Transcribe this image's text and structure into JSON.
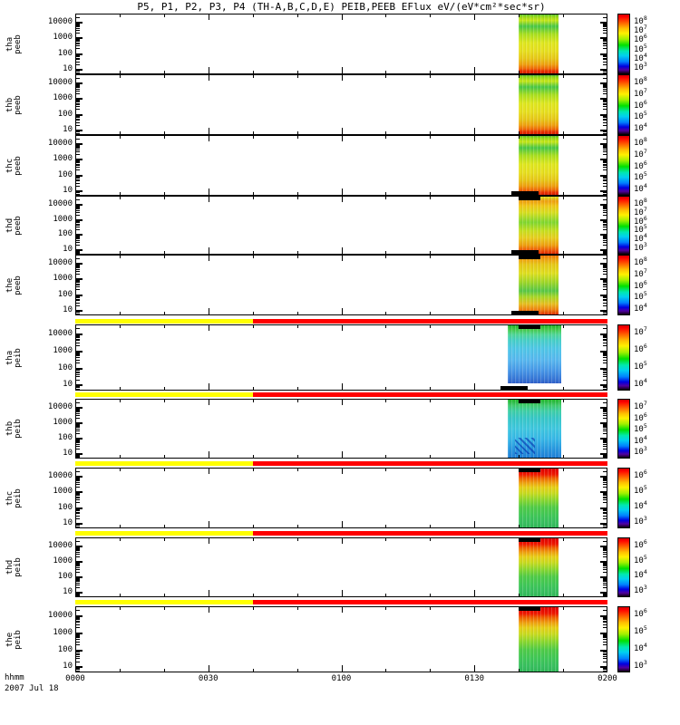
{
  "title": "P5, P1, P2, P3, P4 (TH-A,B,C,D,E) PEIB,PEEB EFlux eV/(eV*cm²*sec*sr)",
  "x_axis": {
    "format_label": "hhmm",
    "date": "2007 Jul 18",
    "ticks": [
      "0000",
      "0030",
      "0100",
      "0130",
      "0200"
    ]
  },
  "y_axis": {
    "scale": "log",
    "tick_labels": [
      "10000",
      "1000",
      "100",
      "10"
    ]
  },
  "colors": {
    "background": "#ffffff",
    "axis": "#000000",
    "mode_bar_yellow": "#ffff00",
    "mode_bar_red": "#ff0000"
  },
  "chart_data": {
    "type": "heatmap",
    "title": "P5, P1, P2, P3, P4 (TH-A,B,C,D,E) PEIB,PEEB EFlux eV/(eV*cm²*sec*sr)",
    "units": "eV/(eV*cm²*sec*sr)",
    "x": {
      "format": "hhmm",
      "date": "2007 Jul 18",
      "start": "0000",
      "end": "0200",
      "major_tick_minutes": 30,
      "minor_tick_minutes": 10,
      "tick_labels": [
        "0000",
        "0030",
        "0100",
        "0130",
        "0200"
      ]
    },
    "y": {
      "scale": "log",
      "ticks": [
        10,
        100,
        1000,
        10000
      ],
      "range_ev": [
        5,
        30000
      ]
    },
    "legend_position": "right-colorbars",
    "grid": false,
    "burst_interval": {
      "start": "0140",
      "end": "0149",
      "note": "colored flux band present in all panels"
    },
    "mode_bar_segments": [
      {
        "color": "#ffff00",
        "start": "0000",
        "end": "0040"
      },
      {
        "color": "#ff0000",
        "start": "0040",
        "end": "0200"
      }
    ],
    "panels": [
      {
        "id": "tha-peeb",
        "label_lines": [
          "tha",
          "peeb"
        ],
        "colorbar_exponents": [
          "8",
          "7",
          "6",
          "5",
          "4",
          "3"
        ],
        "band_style": "peeb-a",
        "band_minutes": [
          100,
          109
        ],
        "mode_bar": false,
        "top_mark": false,
        "bottom_mark": false,
        "description": "electron burst EFlux, yellow-green band with orange-red base"
      },
      {
        "id": "thb-peeb",
        "label_lines": [
          "thb",
          "peeb"
        ],
        "colorbar_exponents": [
          "8",
          "7",
          "6",
          "5",
          "4"
        ],
        "band_style": "peeb-a",
        "band_minutes": [
          100,
          109
        ],
        "mode_bar": false,
        "top_mark": false,
        "bottom_mark": false,
        "description": "electron burst EFlux, yellow-green band"
      },
      {
        "id": "thc-peeb",
        "label_lines": [
          "thc",
          "peeb"
        ],
        "colorbar_exponents": [
          "8",
          "7",
          "6",
          "5",
          "4"
        ],
        "band_style": "peeb-a",
        "band_minutes": [
          100,
          109
        ],
        "mode_bar": false,
        "top_mark": false,
        "bottom_mark": true,
        "description": "electron burst EFlux, yellow-green band, red stripe at bottom"
      },
      {
        "id": "thd-peeb",
        "label_lines": [
          "thd",
          "peeb"
        ],
        "colorbar_exponents": [
          "8",
          "7",
          "6",
          "5",
          "4",
          "3"
        ],
        "band_style": "peeb-b",
        "band_minutes": [
          100,
          109
        ],
        "mode_bar": false,
        "top_mark": true,
        "bottom_mark": true,
        "description": "electron burst EFlux, orange/yellow band"
      },
      {
        "id": "the-peeb",
        "label_lines": [
          "the",
          "peeb"
        ],
        "colorbar_exponents": [
          "8",
          "7",
          "6",
          "5",
          "4"
        ],
        "band_style": "peeb-c",
        "band_minutes": [
          100,
          109
        ],
        "mode_bar": false,
        "top_mark": true,
        "bottom_mark": true,
        "description": "electron burst EFlux, orange top fading to green"
      },
      {
        "id": "tha-peib",
        "label_lines": [
          "tha",
          "peib"
        ],
        "colorbar_exponents": [
          "7",
          "6",
          "5",
          "4"
        ],
        "band_style": "peib-cyan",
        "band_minutes": [
          97.5,
          109.5
        ],
        "mode_bar": true,
        "top_mark": true,
        "bottom_mark": true,
        "description": "ion burst EFlux, green top over cyan/blue band"
      },
      {
        "id": "thb-peib",
        "label_lines": [
          "thb",
          "peib"
        ],
        "colorbar_exponents": [
          "7",
          "6",
          "5",
          "4",
          "3"
        ],
        "band_style": "peib-cyan2",
        "band_minutes": [
          97.5,
          109.5
        ],
        "mode_bar": true,
        "top_mark": true,
        "bottom_mark": false,
        "description": "ion burst EFlux, green-cyan band with dark blue speckles near bottom"
      },
      {
        "id": "thc-peib",
        "label_lines": [
          "thc",
          "peib"
        ],
        "colorbar_exponents": [
          "6",
          "5",
          "4",
          "3"
        ],
        "band_style": "peib-hot",
        "band_minutes": [
          100,
          109
        ],
        "mode_bar": true,
        "top_mark": true,
        "bottom_mark": false,
        "description": "ion burst EFlux, red top, yellow middle, green bottom"
      },
      {
        "id": "thd-peib",
        "label_lines": [
          "thd",
          "peib"
        ],
        "colorbar_exponents": [
          "6",
          "5",
          "4",
          "3"
        ],
        "band_style": "peib-hot",
        "band_minutes": [
          100,
          109
        ],
        "mode_bar": true,
        "top_mark": true,
        "bottom_mark": false,
        "description": "ion burst EFlux, red top, yellow middle, green bottom"
      },
      {
        "id": "the-peib",
        "label_lines": [
          "the",
          "peib"
        ],
        "colorbar_exponents": [
          "6",
          "5",
          "4",
          "3"
        ],
        "band_style": "peib-hot",
        "band_minutes": [
          100,
          109
        ],
        "mode_bar": true,
        "top_mark": true,
        "bottom_mark": false,
        "description": "ion burst EFlux, red top, yellow middle, green bottom"
      }
    ]
  }
}
